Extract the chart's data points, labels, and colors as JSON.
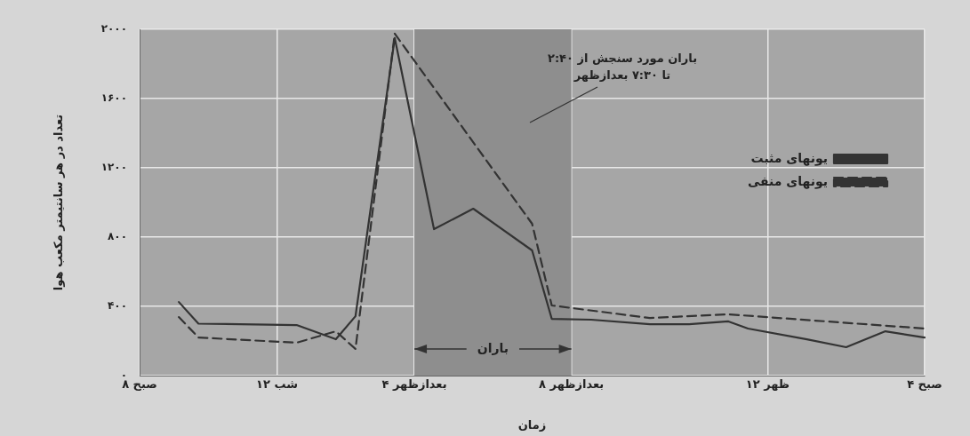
{
  "chart_data": {
    "type": "line",
    "xlabel": "زمان",
    "ylabel": "تعداد در هر سانتیمتر مکعب هوا",
    "categories": [
      "۸ صبح",
      null,
      null,
      null,
      null,
      null,
      null,
      "۱۲ شب",
      null,
      null,
      null,
      null,
      null,
      null,
      "۴ بعدازظهر",
      null,
      null,
      null,
      null,
      null,
      null,
      null,
      "۸ بعدازظهر",
      null,
      null,
      null,
      null,
      null,
      null,
      null,
      null,
      null,
      "۱۲ ظهر",
      null,
      null,
      null,
      null,
      null,
      null,
      null,
      "۴ صبح"
    ],
    "ylim": [
      0,
      2000
    ],
    "yticks": [
      {
        "value": 0,
        "label": "۰"
      },
      {
        "value": 400,
        "label": "۴۰۰"
      },
      {
        "value": 800,
        "label": "۸۰۰"
      },
      {
        "value": 1200,
        "label": "۱۲۰۰"
      },
      {
        "value": 1600,
        "label": "۱۶۰۰"
      },
      {
        "value": 2000,
        "label": "۲۰۰۰"
      }
    ],
    "grid": true,
    "legend": "right",
    "marker": "none",
    "series": [
      {
        "name": "یونهای مثبت",
        "color": "#333333",
        "line_style": "solid",
        "values": [
          null,
          null,
          425,
          300,
          null,
          null,
          null,
          null,
          292,
          null,
          210,
          343,
          null,
          1950,
          null,
          846,
          null,
          964,
          null,
          null,
          723,
          328,
          null,
          323,
          null,
          null,
          297,
          null,
          297,
          null,
          313,
          272,
          null,
          null,
          210,
          null,
          164,
          null,
          256,
          null,
          220
        ]
      },
      {
        "name": "یونهای منفی",
        "color": "#333333",
        "line_style": "dashed",
        "values": [
          null,
          null,
          338,
          220,
          null,
          null,
          null,
          null,
          190,
          null,
          256,
          154,
          null,
          1975,
          null,
          null,
          null,
          null,
          null,
          null,
          877,
          405,
          null,
          null,
          null,
          null,
          333,
          null,
          null,
          null,
          354,
          null,
          null,
          null,
          null,
          null,
          null,
          null,
          null,
          null,
          272
        ]
      }
    ],
    "bands": [
      {
        "axis": "x",
        "from": "۴ بعدازظهر",
        "to": "۸ بعدازظهر",
        "label": "باران",
        "color": "#8e8e8e"
      }
    ],
    "annotations": [
      "باران مورد سنجش از ۲:۴۰ تا ۷:۳۰ بعدازظهر"
    ]
  }
}
